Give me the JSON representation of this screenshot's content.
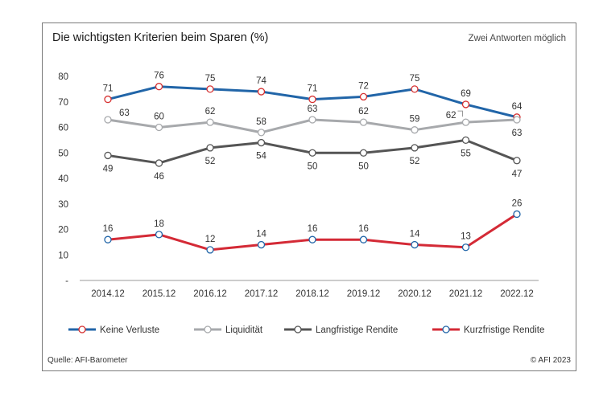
{
  "chart_data": {
    "type": "line",
    "title": "Die wichtigsten Kriterien beim Sparen (%)",
    "subtitle": "Zwei Antworten möglich",
    "source": "Quelle: AFI-Barometer",
    "copyright": "© AFI 2023",
    "x": [
      "2014.12",
      "2015.12",
      "2016.12",
      "2017.12",
      "2018.12",
      "2019.12",
      "2020.12",
      "2021.12",
      "2022.12"
    ],
    "ylim": [
      0,
      80
    ],
    "yticks": [
      {
        "value": 0,
        "label": "-"
      },
      {
        "value": 10,
        "label": "10"
      },
      {
        "value": 20,
        "label": "20"
      },
      {
        "value": 30,
        "label": "30"
      },
      {
        "value": 40,
        "label": "40"
      },
      {
        "value": 50,
        "label": "50"
      },
      {
        "value": 60,
        "label": "60"
      },
      {
        "value": 70,
        "label": "70"
      },
      {
        "value": 80,
        "label": "80"
      }
    ],
    "grid": false,
    "legend_position": "bottom",
    "series": [
      {
        "name": "Keine Verluste",
        "color": "#2165a8",
        "marker_edge": "#d63030",
        "values": [
          71,
          76,
          75,
          74,
          71,
          72,
          75,
          69,
          64
        ]
      },
      {
        "name": "Liquidität",
        "color": "#a7a9ac",
        "marker_edge": "#a7a9ac",
        "values": [
          63,
          60,
          62,
          58,
          63,
          62,
          59,
          62,
          63
        ]
      },
      {
        "name": "Langfristige Rendite",
        "color": "#555555",
        "marker_edge": "#555555",
        "values": [
          49,
          46,
          52,
          54,
          50,
          50,
          52,
          55,
          47
        ]
      },
      {
        "name": "Kurzfristige Rendite",
        "color": "#d42a36",
        "marker_edge": "#2165a8",
        "values": [
          16,
          18,
          12,
          14,
          16,
          16,
          14,
          13,
          26
        ]
      }
    ]
  }
}
